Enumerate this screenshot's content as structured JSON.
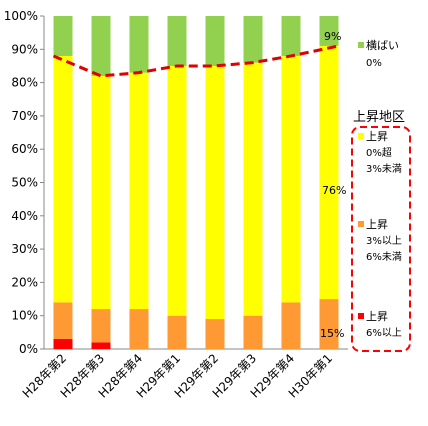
{
  "chart_data": {
    "type": "bar",
    "stacked": true,
    "categories": [
      "H28年第2",
      "H28年第3",
      "H28年第4",
      "H29年第1",
      "H29年第2",
      "H29年第3",
      "H29年第4",
      "H30年第1"
    ],
    "ylim": [
      0,
      100
    ],
    "yticks": [
      "0%",
      "10%",
      "20%",
      "30%",
      "40%",
      "50%",
      "60%",
      "70%",
      "80%",
      "90%",
      "100%"
    ],
    "grid": false,
    "series": [
      {
        "name": "上昇 6%以上",
        "color": "#ff0000",
        "values": [
          3,
          2,
          0,
          0,
          0,
          0,
          0,
          0
        ]
      },
      {
        "name": "上昇 3%以上 6%未満",
        "color": "#ff9933",
        "values": [
          11,
          10,
          12,
          10,
          9,
          10,
          14,
          15
        ]
      },
      {
        "name": "上昇 0%超 3%未満",
        "color": "#ffff00",
        "values": [
          74,
          70,
          71,
          75,
          76,
          76,
          74,
          76
        ]
      },
      {
        "name": "横ばい 0%",
        "color": "#92d050",
        "values": [
          12,
          18,
          17,
          15,
          15,
          14,
          12,
          9
        ]
      }
    ],
    "rise_line": {
      "color": "#e00000",
      "values": [
        88,
        82,
        83,
        85,
        85,
        86,
        88,
        91
      ]
    },
    "annotations": {
      "top": "9%",
      "middle": "76%",
      "bottom": "15%"
    },
    "legend": {
      "position": "right",
      "flat_label": "横ばい",
      "flat_sub": "0%",
      "rise_title": "上昇地区",
      "rise_items": [
        {
          "color": "#ffff00",
          "lines": [
            "上昇",
            "0%超",
            "3%未満"
          ]
        },
        {
          "color": "#ff9933",
          "lines": [
            "上昇",
            "3%以上",
            "6%未満"
          ]
        },
        {
          "color": "#ff0000",
          "lines": [
            "上昇",
            "6%以上"
          ]
        }
      ]
    }
  }
}
